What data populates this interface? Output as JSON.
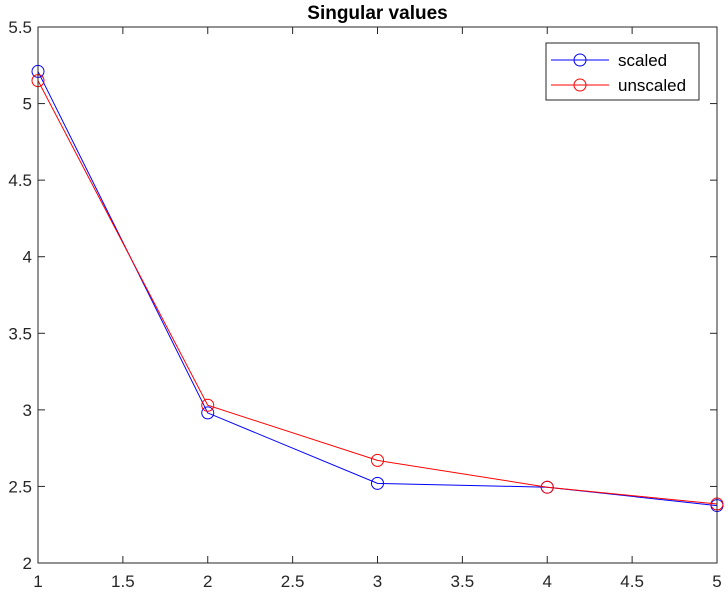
{
  "chart_data": {
    "type": "line",
    "title": "Singular values",
    "xlabel": "",
    "ylabel": "",
    "xlim": [
      1,
      5
    ],
    "ylim": [
      2,
      5.5
    ],
    "xticks": [
      1,
      1.5,
      2,
      2.5,
      3,
      3.5,
      4,
      4.5,
      5
    ],
    "xtick_labels": [
      "1",
      "1.5",
      "2",
      "2.5",
      "3",
      "3.5",
      "4",
      "4.5",
      "5"
    ],
    "yticks": [
      2,
      2.5,
      3,
      3.5,
      4,
      4.5,
      5,
      5.5
    ],
    "ytick_labels": [
      "2",
      "2.5",
      "3",
      "3.5",
      "4",
      "4.5",
      "5",
      "5.5"
    ],
    "grid": false,
    "legend_position": "top-right",
    "x": [
      1,
      2,
      3,
      4,
      5
    ],
    "series": [
      {
        "name": "scaled",
        "color": "#0000ff",
        "marker": "circle",
        "values": [
          5.21,
          2.98,
          2.52,
          2.495,
          2.375
        ]
      },
      {
        "name": "unscaled",
        "color": "#ff0000",
        "marker": "circle",
        "values": [
          5.15,
          3.03,
          2.67,
          2.495,
          2.385
        ]
      }
    ]
  }
}
